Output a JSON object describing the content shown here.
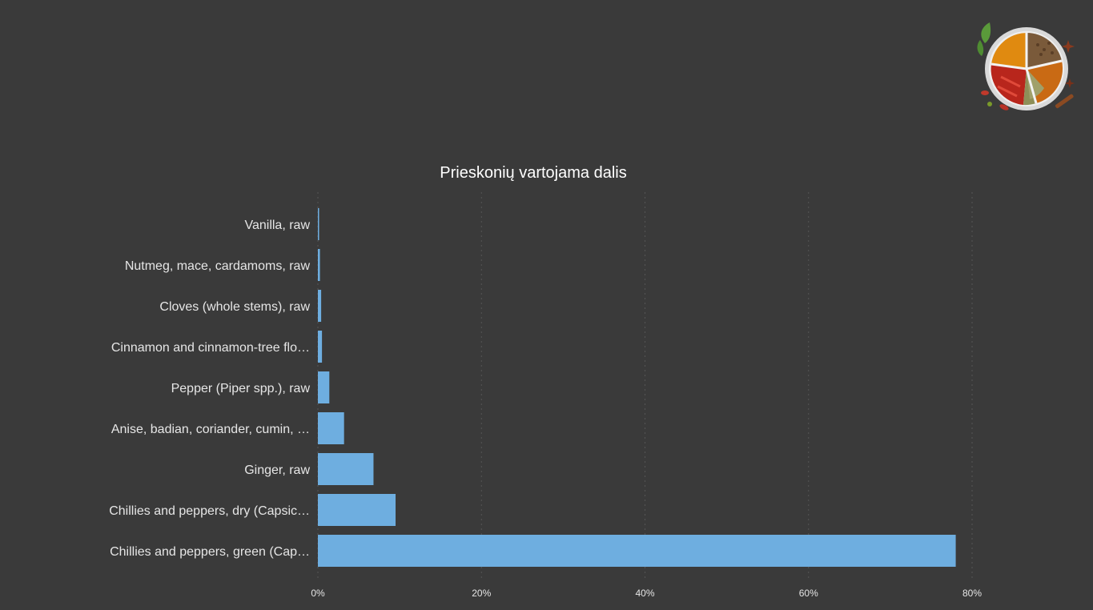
{
  "logo": {
    "icon": "spice-bowl-icon"
  },
  "chart_data": {
    "type": "bar",
    "orientation": "horizontal",
    "title": "Prieskonių vartojama dalis",
    "xlabel": "",
    "ylabel": "",
    "categories": [
      "Vanilla, raw",
      "Nutmeg, mace, cardamoms, raw",
      "Cloves (whole stems), raw",
      "Cinnamon and cinnamon-tree flo…",
      "Pepper (Piper spp.), raw",
      "Anise, badian, coriander, cumin, …",
      "Ginger, raw",
      "Chillies and peppers, dry (Capsic…",
      "Chillies and peppers, green (Cap…"
    ],
    "values": [
      0.1,
      0.25,
      0.4,
      0.5,
      1.4,
      3.2,
      6.8,
      9.5,
      78.0
    ],
    "xlim": [
      0,
      90
    ],
    "x_ticks": [
      0,
      20,
      40,
      60,
      80
    ],
    "x_tick_labels": [
      "0%",
      "20%",
      "40%",
      "60%",
      "80%"
    ],
    "grid": true,
    "colors": {
      "bar": "#6eaee0",
      "background": "#3a3a3a"
    }
  }
}
